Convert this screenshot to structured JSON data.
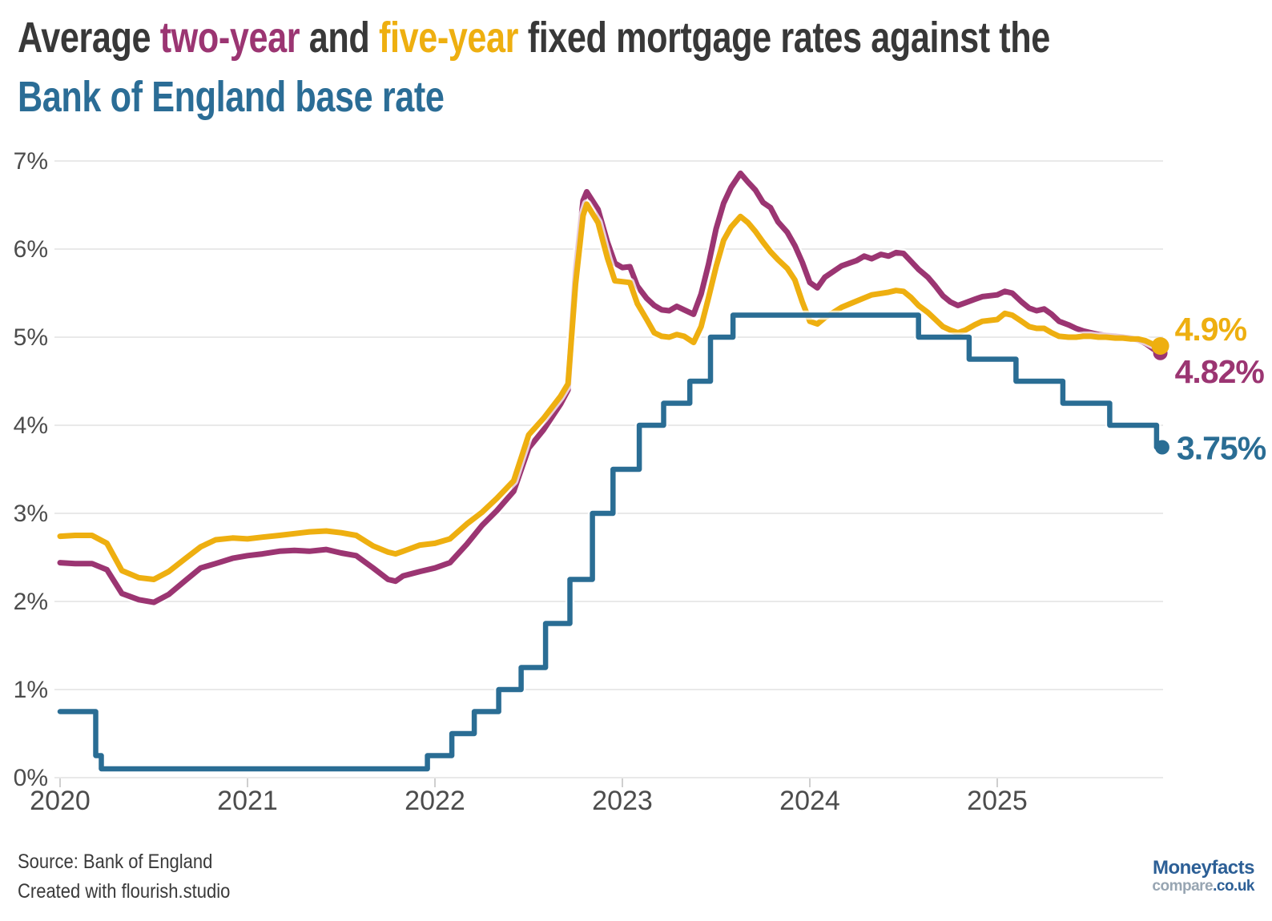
{
  "title": {
    "line1": [
      {
        "text": "Average ",
        "color": "#383838"
      },
      {
        "text": "two-year",
        "color": "#9b3572"
      },
      {
        "text": " and ",
        "color": "#383838"
      },
      {
        "text": "five-year",
        "color": "#eeaf10"
      },
      {
        "text": " fixed mortgage rates against the",
        "color": "#383838"
      }
    ],
    "line2": [
      {
        "text": "Bank of England base rate",
        "color": "#2b6d96"
      }
    ]
  },
  "footer": {
    "source": "Source: Bank of England",
    "credit": "Created with flourish.studio"
  },
  "logo": {
    "brand": "Moneyfacts",
    "compare": "compare",
    "tld": ".co.uk",
    "blue": "#2c5f96",
    "gray": "#97a5b2"
  },
  "colors": {
    "two_year": "#9b3572",
    "five_year": "#eeaf10",
    "base_rate": "#2a6d94",
    "gridline": "#e9e9e9",
    "tick": "#cfcfcf",
    "axis_label": "#4c4c4c",
    "background": "#ffffff"
  },
  "chart_data": {
    "type": "line",
    "unit": "%",
    "ylim": [
      0,
      7
    ],
    "yticks": [
      0,
      1,
      2,
      3,
      4,
      5,
      6,
      7
    ],
    "ytick_labels": [
      "0%",
      "1%",
      "2%",
      "3%",
      "4%",
      "5%",
      "6%",
      "7%"
    ],
    "xticks": [
      2020,
      2021,
      2022,
      2023,
      2024,
      2025
    ],
    "xtick_labels": [
      "2020",
      "2021",
      "2022",
      "2023",
      "2024",
      "2025"
    ],
    "x_domain": [
      2020.0,
      2025.88
    ],
    "grid": true,
    "legend_position": "none",
    "series": [
      {
        "id": "two_year",
        "name": "Average two-year fixed mortgage rate",
        "color": "#9b3572",
        "interp": "linear",
        "end_value": 4.82,
        "end_label": "4.82%",
        "points": [
          [
            2020.0,
            2.44
          ],
          [
            2020.08,
            2.43
          ],
          [
            2020.17,
            2.43
          ],
          [
            2020.25,
            2.36
          ],
          [
            2020.33,
            2.09
          ],
          [
            2020.42,
            2.02
          ],
          [
            2020.5,
            1.99
          ],
          [
            2020.58,
            2.08
          ],
          [
            2020.67,
            2.24
          ],
          [
            2020.75,
            2.38
          ],
          [
            2020.83,
            2.43
          ],
          [
            2020.92,
            2.49
          ],
          [
            2021.0,
            2.52
          ],
          [
            2021.08,
            2.54
          ],
          [
            2021.17,
            2.57
          ],
          [
            2021.25,
            2.58
          ],
          [
            2021.33,
            2.57
          ],
          [
            2021.42,
            2.59
          ],
          [
            2021.5,
            2.55
          ],
          [
            2021.58,
            2.52
          ],
          [
            2021.67,
            2.38
          ],
          [
            2021.75,
            2.25
          ],
          [
            2021.79,
            2.23
          ],
          [
            2021.83,
            2.29
          ],
          [
            2021.92,
            2.34
          ],
          [
            2022.0,
            2.38
          ],
          [
            2022.08,
            2.44
          ],
          [
            2022.17,
            2.65
          ],
          [
            2022.25,
            2.86
          ],
          [
            2022.33,
            3.03
          ],
          [
            2022.42,
            3.25
          ],
          [
            2022.5,
            3.74
          ],
          [
            2022.58,
            3.95
          ],
          [
            2022.67,
            4.24
          ],
          [
            2022.71,
            4.4
          ],
          [
            2022.75,
            5.75
          ],
          [
            2022.79,
            6.55
          ],
          [
            2022.81,
            6.65
          ],
          [
            2022.87,
            6.45
          ],
          [
            2022.92,
            6.08
          ],
          [
            2022.96,
            5.84
          ],
          [
            2023.0,
            5.79
          ],
          [
            2023.04,
            5.8
          ],
          [
            2023.08,
            5.58
          ],
          [
            2023.13,
            5.44
          ],
          [
            2023.17,
            5.36
          ],
          [
            2023.21,
            5.31
          ],
          [
            2023.25,
            5.3
          ],
          [
            2023.29,
            5.35
          ],
          [
            2023.33,
            5.31
          ],
          [
            2023.38,
            5.26
          ],
          [
            2023.42,
            5.49
          ],
          [
            2023.46,
            5.83
          ],
          [
            2023.5,
            6.23
          ],
          [
            2023.54,
            6.52
          ],
          [
            2023.58,
            6.7
          ],
          [
            2023.63,
            6.86
          ],
          [
            2023.67,
            6.76
          ],
          [
            2023.71,
            6.67
          ],
          [
            2023.75,
            6.53
          ],
          [
            2023.79,
            6.47
          ],
          [
            2023.83,
            6.31
          ],
          [
            2023.88,
            6.19
          ],
          [
            2023.92,
            6.04
          ],
          [
            2023.96,
            5.85
          ],
          [
            2024.0,
            5.62
          ],
          [
            2024.04,
            5.56
          ],
          [
            2024.08,
            5.68
          ],
          [
            2024.17,
            5.81
          ],
          [
            2024.25,
            5.87
          ],
          [
            2024.29,
            5.92
          ],
          [
            2024.33,
            5.89
          ],
          [
            2024.38,
            5.94
          ],
          [
            2024.42,
            5.92
          ],
          [
            2024.46,
            5.96
          ],
          [
            2024.5,
            5.95
          ],
          [
            2024.54,
            5.86
          ],
          [
            2024.58,
            5.77
          ],
          [
            2024.63,
            5.68
          ],
          [
            2024.67,
            5.58
          ],
          [
            2024.71,
            5.47
          ],
          [
            2024.75,
            5.4
          ],
          [
            2024.79,
            5.36
          ],
          [
            2024.83,
            5.39
          ],
          [
            2024.88,
            5.43
          ],
          [
            2024.92,
            5.46
          ],
          [
            2025.0,
            5.48
          ],
          [
            2025.04,
            5.52
          ],
          [
            2025.08,
            5.5
          ],
          [
            2025.13,
            5.4
          ],
          [
            2025.17,
            5.33
          ],
          [
            2025.21,
            5.3
          ],
          [
            2025.25,
            5.32
          ],
          [
            2025.29,
            5.26
          ],
          [
            2025.33,
            5.18
          ],
          [
            2025.38,
            5.14
          ],
          [
            2025.42,
            5.1
          ],
          [
            2025.46,
            5.07
          ],
          [
            2025.5,
            5.05
          ],
          [
            2025.54,
            5.03
          ],
          [
            2025.58,
            5.02
          ],
          [
            2025.63,
            5.01
          ],
          [
            2025.67,
            5.0
          ],
          [
            2025.71,
            4.99
          ],
          [
            2025.75,
            4.97
          ],
          [
            2025.79,
            4.93
          ],
          [
            2025.83,
            4.87
          ],
          [
            2025.87,
            4.82
          ]
        ]
      },
      {
        "id": "five_year",
        "name": "Average five-year fixed mortgage rate",
        "color": "#eeaf10",
        "interp": "linear",
        "end_value": 4.9,
        "end_label": "4.9%",
        "points": [
          [
            2020.0,
            2.74
          ],
          [
            2020.08,
            2.75
          ],
          [
            2020.17,
            2.75
          ],
          [
            2020.25,
            2.66
          ],
          [
            2020.33,
            2.35
          ],
          [
            2020.42,
            2.27
          ],
          [
            2020.5,
            2.25
          ],
          [
            2020.58,
            2.34
          ],
          [
            2020.67,
            2.49
          ],
          [
            2020.75,
            2.62
          ],
          [
            2020.83,
            2.7
          ],
          [
            2020.92,
            2.72
          ],
          [
            2021.0,
            2.71
          ],
          [
            2021.08,
            2.73
          ],
          [
            2021.17,
            2.75
          ],
          [
            2021.25,
            2.77
          ],
          [
            2021.33,
            2.79
          ],
          [
            2021.42,
            2.8
          ],
          [
            2021.5,
            2.78
          ],
          [
            2021.58,
            2.75
          ],
          [
            2021.67,
            2.63
          ],
          [
            2021.75,
            2.56
          ],
          [
            2021.79,
            2.54
          ],
          [
            2021.83,
            2.57
          ],
          [
            2021.92,
            2.64
          ],
          [
            2022.0,
            2.66
          ],
          [
            2022.08,
            2.71
          ],
          [
            2022.17,
            2.88
          ],
          [
            2022.25,
            3.01
          ],
          [
            2022.33,
            3.17
          ],
          [
            2022.42,
            3.37
          ],
          [
            2022.5,
            3.89
          ],
          [
            2022.58,
            4.08
          ],
          [
            2022.67,
            4.33
          ],
          [
            2022.71,
            4.47
          ],
          [
            2022.75,
            5.6
          ],
          [
            2022.79,
            6.38
          ],
          [
            2022.81,
            6.51
          ],
          [
            2022.87,
            6.3
          ],
          [
            2022.92,
            5.9
          ],
          [
            2022.96,
            5.64
          ],
          [
            2023.0,
            5.63
          ],
          [
            2023.04,
            5.62
          ],
          [
            2023.08,
            5.38
          ],
          [
            2023.13,
            5.2
          ],
          [
            2023.17,
            5.05
          ],
          [
            2023.21,
            5.01
          ],
          [
            2023.25,
            5.0
          ],
          [
            2023.29,
            5.03
          ],
          [
            2023.33,
            5.01
          ],
          [
            2023.38,
            4.94
          ],
          [
            2023.42,
            5.12
          ],
          [
            2023.46,
            5.45
          ],
          [
            2023.5,
            5.8
          ],
          [
            2023.54,
            6.1
          ],
          [
            2023.58,
            6.25
          ],
          [
            2023.63,
            6.37
          ],
          [
            2023.67,
            6.3
          ],
          [
            2023.71,
            6.2
          ],
          [
            2023.75,
            6.08
          ],
          [
            2023.79,
            5.97
          ],
          [
            2023.83,
            5.88
          ],
          [
            2023.88,
            5.78
          ],
          [
            2023.92,
            5.65
          ],
          [
            2023.96,
            5.4
          ],
          [
            2024.0,
            5.18
          ],
          [
            2024.04,
            5.15
          ],
          [
            2024.08,
            5.22
          ],
          [
            2024.17,
            5.34
          ],
          [
            2024.25,
            5.41
          ],
          [
            2024.33,
            5.48
          ],
          [
            2024.42,
            5.51
          ],
          [
            2024.46,
            5.53
          ],
          [
            2024.5,
            5.52
          ],
          [
            2024.54,
            5.45
          ],
          [
            2024.58,
            5.36
          ],
          [
            2024.63,
            5.28
          ],
          [
            2024.67,
            5.2
          ],
          [
            2024.71,
            5.12
          ],
          [
            2024.75,
            5.08
          ],
          [
            2024.79,
            5.05
          ],
          [
            2024.83,
            5.08
          ],
          [
            2024.88,
            5.14
          ],
          [
            2024.92,
            5.18
          ],
          [
            2025.0,
            5.2
          ],
          [
            2025.04,
            5.27
          ],
          [
            2025.08,
            5.25
          ],
          [
            2025.13,
            5.18
          ],
          [
            2025.17,
            5.12
          ],
          [
            2025.21,
            5.1
          ],
          [
            2025.25,
            5.1
          ],
          [
            2025.29,
            5.05
          ],
          [
            2025.33,
            5.01
          ],
          [
            2025.38,
            5.0
          ],
          [
            2025.42,
            5.0
          ],
          [
            2025.46,
            5.01
          ],
          [
            2025.5,
            5.01
          ],
          [
            2025.54,
            5.0
          ],
          [
            2025.58,
            5.0
          ],
          [
            2025.63,
            4.99
          ],
          [
            2025.67,
            4.99
          ],
          [
            2025.71,
            4.98
          ],
          [
            2025.75,
            4.98
          ],
          [
            2025.79,
            4.96
          ],
          [
            2025.83,
            4.92
          ],
          [
            2025.87,
            4.9
          ]
        ]
      },
      {
        "id": "base_rate",
        "name": "Bank of England base rate",
        "color": "#2a6d94",
        "interp": "step-after",
        "end_value": 3.75,
        "end_label": "3.75%",
        "points": [
          [
            2020.0,
            0.75
          ],
          [
            2020.19,
            0.25
          ],
          [
            2020.22,
            0.1
          ],
          [
            2021.96,
            0.25
          ],
          [
            2022.09,
            0.5
          ],
          [
            2022.21,
            0.75
          ],
          [
            2022.34,
            1.0
          ],
          [
            2022.46,
            1.25
          ],
          [
            2022.59,
            1.75
          ],
          [
            2022.72,
            2.25
          ],
          [
            2022.84,
            3.0
          ],
          [
            2022.95,
            3.5
          ],
          [
            2023.09,
            4.0
          ],
          [
            2023.22,
            4.25
          ],
          [
            2023.36,
            4.5
          ],
          [
            2023.47,
            5.0
          ],
          [
            2023.59,
            5.25
          ],
          [
            2024.58,
            5.0
          ],
          [
            2024.85,
            4.75
          ],
          [
            2025.1,
            4.5
          ],
          [
            2025.35,
            4.25
          ],
          [
            2025.6,
            4.0
          ],
          [
            2025.85,
            3.75
          ],
          [
            2025.88,
            3.75
          ]
        ]
      }
    ]
  }
}
